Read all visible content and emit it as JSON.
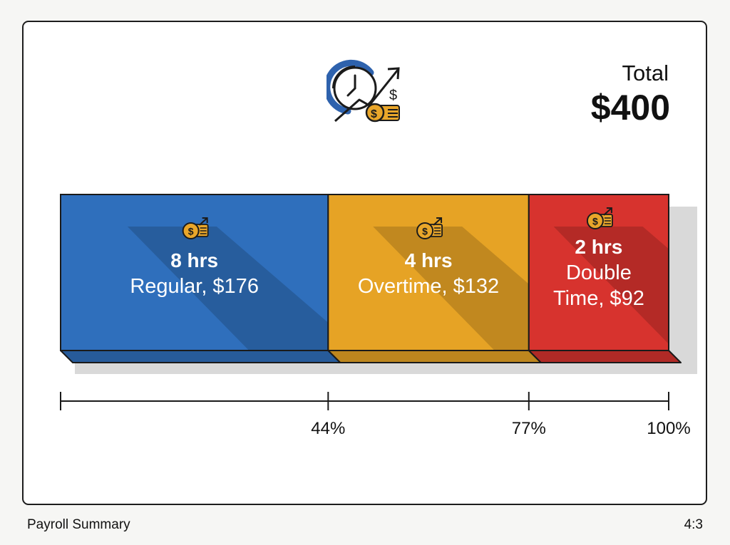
{
  "header": {
    "total_label": "Total",
    "total_value": "$400",
    "icon": "clock-growth-coins-icon"
  },
  "footer": {
    "title": "Payroll Summary",
    "aspect": "4:3"
  },
  "chart_data": {
    "type": "bar",
    "orientation": "horizontal-stacked",
    "title": "",
    "total": 400,
    "segments": [
      {
        "hours_label": "8 hrs",
        "desc_lines": [
          "Regular, $176"
        ],
        "hours": 8,
        "amount": 176,
        "color": "#2f6fbc",
        "icon": "coins-growth-icon"
      },
      {
        "hours_label": "4 hrs",
        "desc_lines": [
          "Overtime, $132"
        ],
        "hours": 4,
        "amount": 132,
        "color": "#e6a325",
        "icon": "coins-growth-icon"
      },
      {
        "hours_label": "2 hrs",
        "desc_lines": [
          "Double",
          "Time, $92"
        ],
        "hours": 2,
        "amount": 92,
        "color": "#d7332e",
        "icon": "coins-growth-icon"
      }
    ],
    "axis_ticks": [
      "44%",
      "77%",
      "100%"
    ],
    "axis_range": [
      0,
      100
    ],
    "grid": false,
    "legend": "none"
  }
}
